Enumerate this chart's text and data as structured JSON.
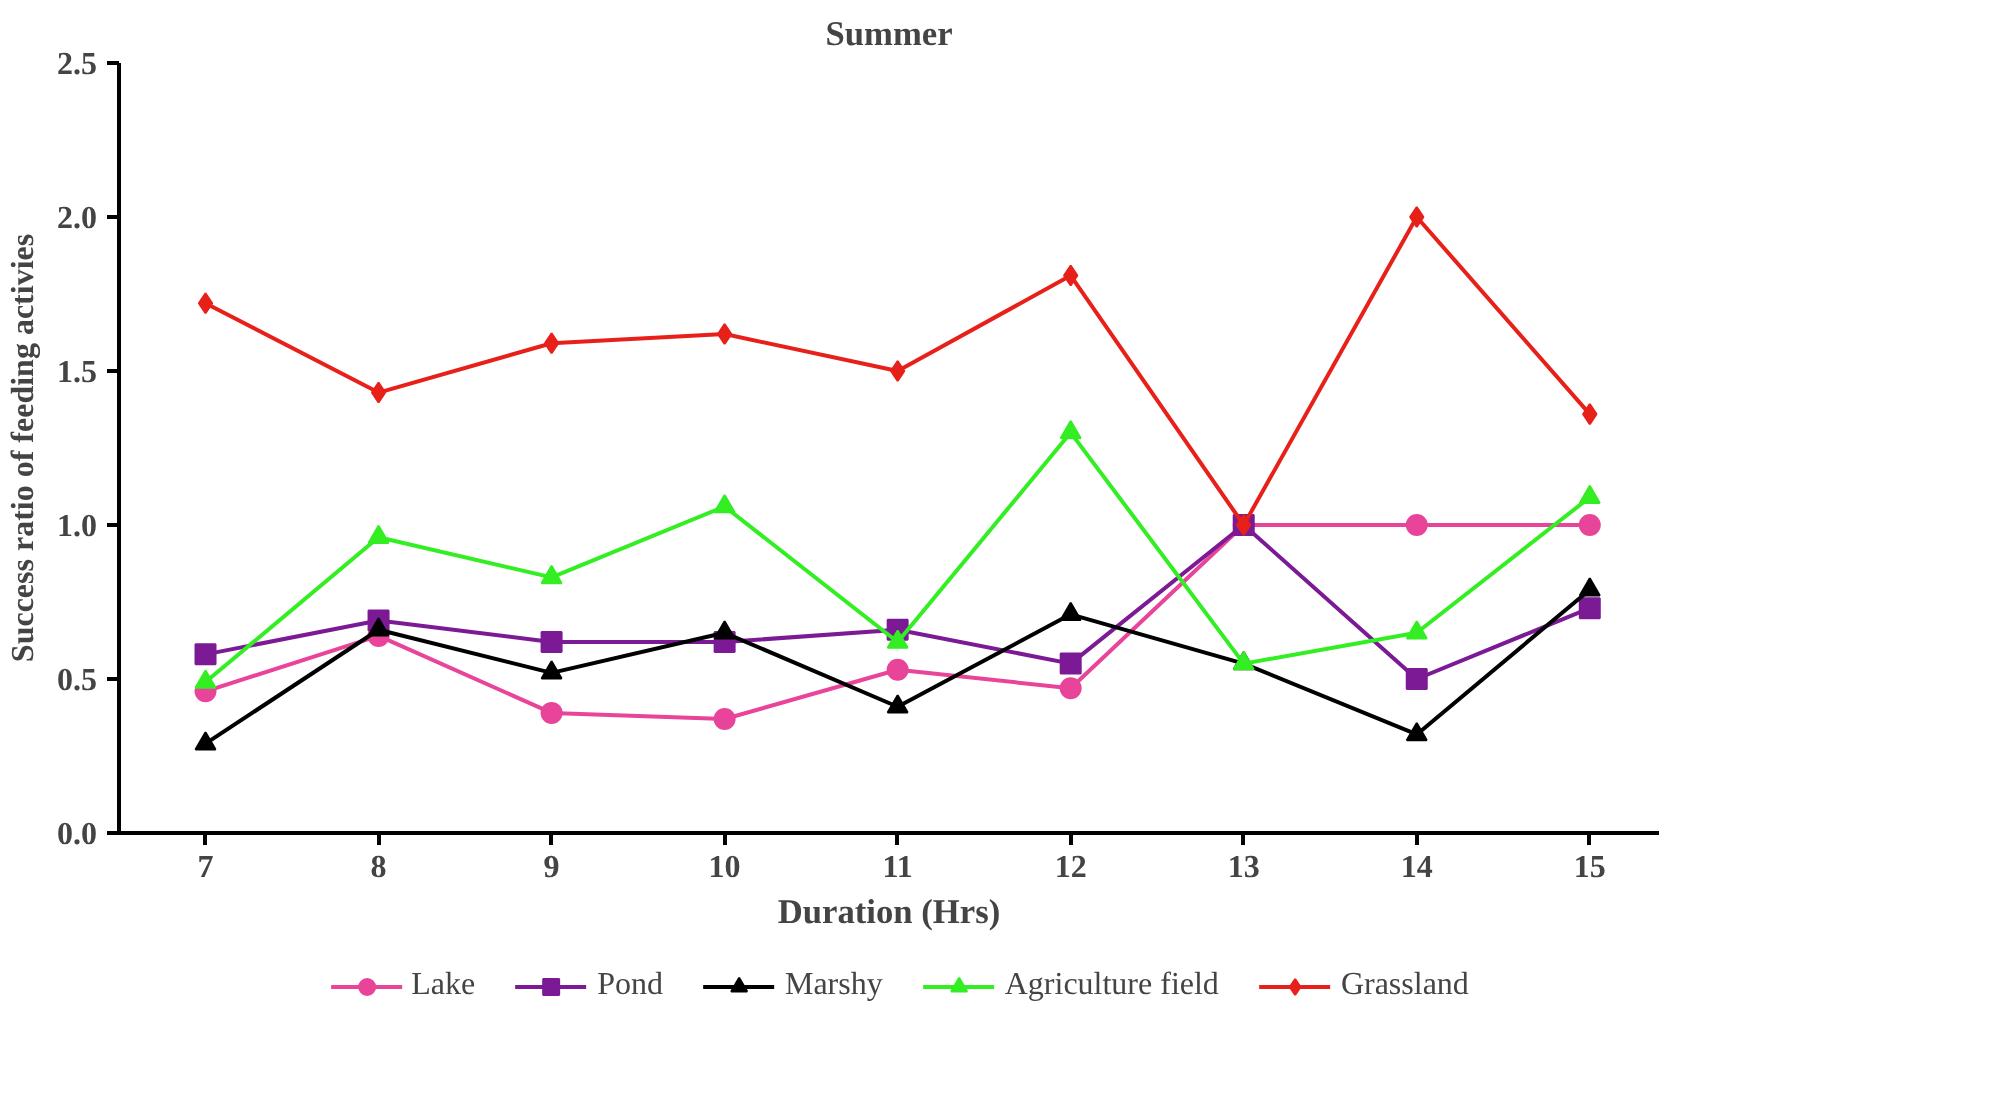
{
  "chart_data": {
    "type": "line",
    "title": "Summer",
    "xlabel": "Duration (Hrs)",
    "ylabel": "Success ratio of feeding activies",
    "x": [
      7,
      8,
      9,
      10,
      11,
      12,
      13,
      14,
      15
    ],
    "xlim": [
      6.5,
      15.4
    ],
    "xticks": [
      7,
      8,
      9,
      10,
      11,
      12,
      13,
      14,
      15
    ],
    "ylim": [
      0,
      2.5
    ],
    "yticks": [
      {
        "value": 0,
        "label": "0.0"
      },
      {
        "value": 0.5,
        "label": "0.5"
      },
      {
        "value": 1,
        "label": "1.0"
      },
      {
        "value": 1.5,
        "label": "1.5"
      },
      {
        "value": 2,
        "label": "2.0"
      },
      {
        "value": 2.5,
        "label": "2.5"
      }
    ],
    "grid": false,
    "legend": "bottom",
    "line_style": "solid",
    "series": [
      {
        "name": "Lake",
        "color": "#e8449a",
        "marker": "circle",
        "values": [
          0.46,
          0.64,
          0.39,
          0.37,
          0.53,
          0.47,
          1.0,
          1.0,
          1.0
        ]
      },
      {
        "name": "Pond",
        "color": "#7b1a94",
        "marker": "square",
        "values": [
          0.58,
          0.69,
          0.62,
          0.62,
          0.66,
          0.55,
          1.0,
          0.5,
          0.73
        ]
      },
      {
        "name": "Marshy",
        "color": "#000000",
        "marker": "triangle",
        "values": [
          0.29,
          0.66,
          0.52,
          0.65,
          0.41,
          0.71,
          0.55,
          0.32,
          0.79
        ]
      },
      {
        "name": "Agriculture field",
        "color": "#33ee22",
        "marker": "triangle",
        "values": [
          0.49,
          0.96,
          0.83,
          1.06,
          0.62,
          1.3,
          0.55,
          0.65,
          1.09
        ]
      },
      {
        "name": "Grassland",
        "color": "#e8201a",
        "marker": "diamond",
        "values": [
          1.72,
          1.43,
          1.59,
          1.62,
          1.5,
          1.81,
          1.0,
          2.0,
          1.36
        ]
      }
    ]
  }
}
